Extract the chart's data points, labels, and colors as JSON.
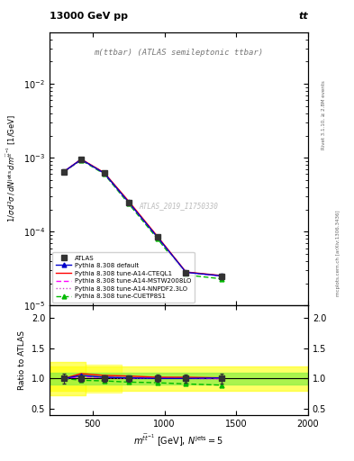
{
  "title_left": "13000 GeV pp",
  "title_right": "tt",
  "annotation": "m(ttbar) (ATLAS semileptonic ttbar)",
  "analysis_label": "ATLAS_2019_I1750330",
  "rivet_label": "Rivet 3.1.10, ≥ 2.8M events",
  "mcplots_label": "mcplots.cern.ch [arXiv:1306.3436]",
  "x_data": [
    300,
    420,
    580,
    750,
    950,
    1150,
    1400
  ],
  "atlas_y": [
    0.00065,
    0.00095,
    0.00062,
    0.00025,
    8.5e-05,
    2.8e-05,
    2.5e-05
  ],
  "atlas_yerr": [
    4e-05,
    4e-05,
    2.5e-05,
    1.2e-05,
    4e-06,
    1.5e-06,
    2e-06
  ],
  "pythia_default_y": [
    0.00065,
    0.00095,
    0.00062,
    0.000252,
    8.5e-05,
    2.82e-05,
    2.52e-05
  ],
  "pythia_cteq_y": [
    0.00065,
    0.00096,
    0.00063,
    0.00026,
    8.7e-05,
    2.85e-05,
    2.55e-05
  ],
  "pythia_mstw_y": [
    0.00065,
    0.00095,
    0.000625,
    0.000252,
    8.6e-05,
    2.82e-05,
    2.52e-05
  ],
  "pythia_nnpdf_y": [
    0.00065,
    0.00095,
    0.000622,
    0.000251,
    8.55e-05,
    2.81e-05,
    2.51e-05
  ],
  "pythia_cuetp_y": [
    0.00065,
    0.00093,
    0.000605,
    0.00024,
    8.1e-05,
    2.6e-05,
    2.3e-05
  ],
  "ratio_default_y": [
    1.0,
    1.05,
    1.02,
    1.01,
    1.0,
    1.0,
    1.01
  ],
  "ratio_cteq_y": [
    1.0,
    1.08,
    1.05,
    1.04,
    1.02,
    1.02,
    1.01
  ],
  "ratio_mstw_y": [
    1.0,
    1.03,
    1.02,
    1.01,
    1.01,
    1.0,
    1.0
  ],
  "ratio_nnpdf_y": [
    1.0,
    1.03,
    1.01,
    1.0,
    1.0,
    1.0,
    0.99
  ],
  "ratio_cuetp_y": [
    1.0,
    0.97,
    0.96,
    0.94,
    0.93,
    0.91,
    0.89
  ],
  "atlas_ratio_yerr": [
    0.08,
    0.05,
    0.05,
    0.05,
    0.06,
    0.07,
    0.08
  ],
  "xlim": [
    200,
    2000
  ],
  "ylim_main": [
    1e-05,
    0.05
  ],
  "ylim_ratio": [
    0.4,
    2.2
  ],
  "color_atlas": "#333333",
  "color_default": "#0000cc",
  "color_cteq": "#ff0000",
  "color_mstw": "#ff00ff",
  "color_nnpdf": "#cc44cc",
  "color_cuetp": "#00bb00"
}
